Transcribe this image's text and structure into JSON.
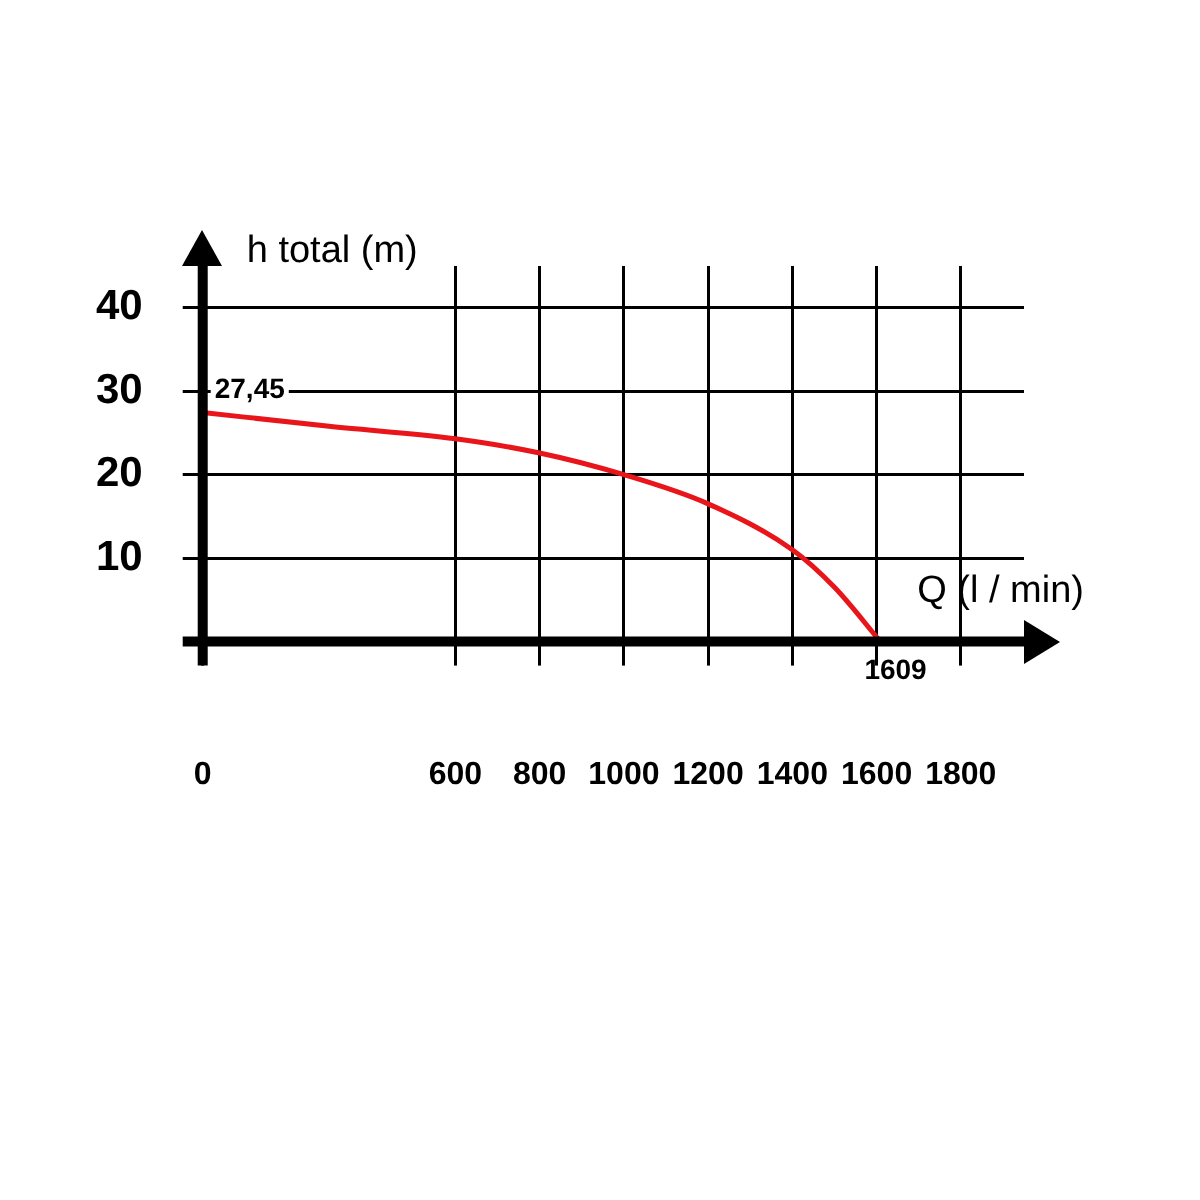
{
  "chart_data": {
    "type": "line",
    "xlabel": "Q (l / min)",
    "ylabel": "h total (m)",
    "series": [
      {
        "color": "#e8161b",
        "x": [
          0,
          300,
          600,
          800,
          1000,
          1200,
          1400,
          1500,
          1609
        ],
        "values": [
          27.45,
          25.8,
          24.3,
          22.6,
          20,
          16.5,
          11,
          6.5,
          0
        ]
      }
    ],
    "xlim": [
      0,
      1950
    ],
    "xticks": [
      0,
      600,
      800,
      1000,
      1200,
      1400,
      1600,
      1800
    ],
    "ylim": [
      0,
      45
    ],
    "yticks": [
      10,
      20,
      30,
      40
    ],
    "grid": true,
    "legend": false,
    "marker": "none",
    "line_style": "solid",
    "annotations": [
      {
        "text": "27,45",
        "x": 0,
        "y": 27.45
      },
      {
        "text": "1609",
        "x": 1609,
        "y": 0
      }
    ]
  }
}
